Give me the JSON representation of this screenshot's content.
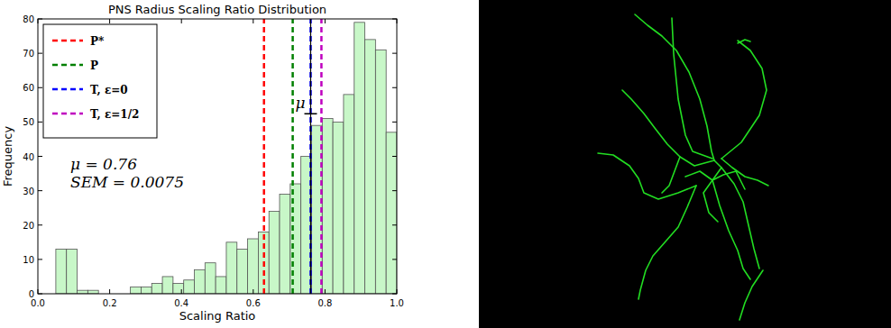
{
  "chart_data": {
    "type": "histogram",
    "title": "PNS Radius Scaling Ratio Distribution",
    "x_label": "Scaling Ratio",
    "y_label": "Frequency",
    "bins": [
      0.05,
      0.0797,
      0.1094,
      0.1391,
      0.1688,
      0.1984,
      0.2281,
      0.2578,
      0.2875,
      0.3172,
      0.3469,
      0.3766,
      0.4063,
      0.4359,
      0.4656,
      0.4953,
      0.525,
      0.5547,
      0.5844,
      0.6141,
      0.6438,
      0.6734,
      0.7031,
      0.7328,
      0.7625,
      0.7922,
      0.8219,
      0.8516,
      0.8813,
      0.9109,
      0.9406,
      0.9703,
      1.0
    ],
    "values": [
      13,
      13,
      1,
      1,
      0,
      0,
      0,
      2,
      2,
      3,
      5,
      3,
      4,
      7,
      9,
      5,
      15,
      13,
      16,
      18,
      24,
      29,
      32,
      40,
      49,
      51,
      50,
      58,
      79,
      74,
      71,
      47
    ],
    "color": "#c8f7c8",
    "xlim": [
      0,
      1
    ],
    "xticks": [
      {
        "value": 0,
        "label": "0.0"
      },
      {
        "value": 0.2,
        "label": "0.2"
      },
      {
        "value": 0.4,
        "label": "0.4"
      },
      {
        "value": 0.6,
        "label": "0.6"
      },
      {
        "value": 0.8,
        "label": "0.8"
      },
      {
        "value": 1,
        "label": "1.0"
      }
    ],
    "ylim": [
      0,
      80
    ],
    "yticks": [
      0,
      10,
      20,
      30,
      40,
      50,
      60,
      70,
      80
    ],
    "series": [
      {
        "name": "P*",
        "type": "vline",
        "color": "#ff0000",
        "line_style": "dashed",
        "values": [
          0.63
        ]
      },
      {
        "name": "P",
        "type": "vline",
        "color": "#008000",
        "line_style": "dashed",
        "values": [
          0.71
        ]
      },
      {
        "name": "T, ε=0",
        "type": "vline",
        "color": "#0000ff",
        "line_style": "dashed",
        "values": [
          0.76
        ]
      },
      {
        "name": "T, ε=1/2",
        "type": "vline",
        "color": "#bf00bf",
        "line_style": "dashed",
        "values": [
          0.79
        ]
      }
    ],
    "mean": 0.76,
    "sem": 0.0075,
    "mean_label": "μ",
    "annotations": [
      "μ = 0.76",
      "SEM = 0.0075"
    ],
    "legend": "upper left"
  }
}
